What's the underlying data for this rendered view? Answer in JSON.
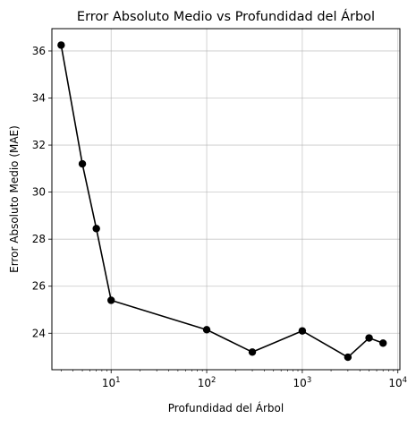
{
  "chart_data": {
    "type": "line",
    "title": "Error Absoluto Medio vs Profundidad del Árbol",
    "xlabel": "Profundidad del Árbol",
    "ylabel": "Error Absoluto Medio (MAE)",
    "x_scale": "log",
    "xlim": [
      2.4,
      10500
    ],
    "ylim": [
      22.45,
      36.95
    ],
    "grid": true,
    "line_color": "#000000",
    "marker_color": "#000000",
    "x_ticks": [
      {
        "value": 10,
        "base": "10",
        "exp": "1"
      },
      {
        "value": 100,
        "base": "10",
        "exp": "2"
      },
      {
        "value": 1000,
        "base": "10",
        "exp": "3"
      },
      {
        "value": 10000,
        "base": "10",
        "exp": "4"
      }
    ],
    "y_ticks": [
      {
        "value": 24,
        "label": "24"
      },
      {
        "value": 26,
        "label": "26"
      },
      {
        "value": 28,
        "label": "28"
      },
      {
        "value": 30,
        "label": "30"
      },
      {
        "value": 32,
        "label": "32"
      },
      {
        "value": 34,
        "label": "34"
      },
      {
        "value": 36,
        "label": "36"
      }
    ],
    "series": [
      {
        "x": [
          3,
          5,
          7,
          10,
          100,
          300,
          1000,
          3000,
          5000,
          7000
        ],
        "y": [
          36.25,
          31.2,
          28.45,
          25.4,
          24.15,
          23.2,
          24.1,
          22.98,
          23.8,
          23.58
        ]
      }
    ]
  }
}
